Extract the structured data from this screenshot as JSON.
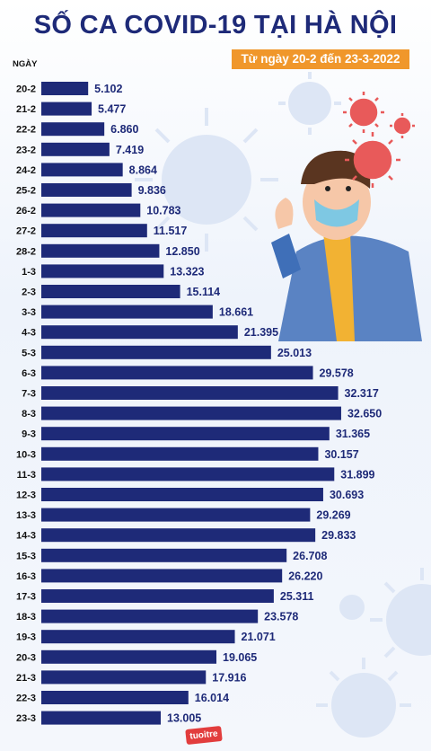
{
  "header": {
    "title": "SỐ CA COVID-19 TẠI HÀ NỘI",
    "subtitle": "Từ ngày 20-2 đến 23-3-2022"
  },
  "logo_text": "tuoitre",
  "colors": {
    "bar": "#1e2a78",
    "title": "#1e2a78",
    "subtitle_bg": "#f0972b",
    "virus": "#e85a5a"
  },
  "illustration": {
    "subject": "man-with-face-mask-sneezing",
    "icons": [
      "virus-icon",
      "virus-icon",
      "virus-icon"
    ]
  },
  "chart_data": {
    "type": "bar",
    "orientation": "horizontal",
    "title": "SỐ CA COVID-19 TẠI HÀ NỘI",
    "subtitle": "Từ ngày 20-2 đến 23-3-2022",
    "ylabel": "NGÀY",
    "xlabel": "",
    "xlim": [
      0,
      35000
    ],
    "grid": false,
    "legend": "none",
    "categories": [
      "20-2",
      "21-2",
      "22-2",
      "23-2",
      "24-2",
      "25-2",
      "26-2",
      "27-2",
      "28-2",
      "1-3",
      "2-3",
      "3-3",
      "4-3",
      "5-3",
      "6-3",
      "7-3",
      "8-3",
      "9-3",
      "10-3",
      "11-3",
      "12-3",
      "13-3",
      "14-3",
      "15-3",
      "16-3",
      "17-3",
      "18-3",
      "19-3",
      "20-3",
      "21-3",
      "22-3",
      "23-3"
    ],
    "values": [
      5102,
      5477,
      6860,
      7419,
      8864,
      9836,
      10783,
      11517,
      12850,
      13323,
      15114,
      18661,
      21395,
      25013,
      29578,
      32317,
      32650,
      31365,
      30157,
      31899,
      30693,
      29269,
      29833,
      26708,
      26220,
      25311,
      23578,
      21071,
      19065,
      17916,
      16014,
      13005
    ],
    "value_labels": [
      "5.102",
      "5.477",
      "6.860",
      "7.419",
      "8.864",
      "9.836",
      "10.783",
      "11.517",
      "12.850",
      "13.323",
      "15.114",
      "18.661",
      "21.395",
      "25.013",
      "29.578",
      "32.317",
      "32.650",
      "31.365",
      "30.157",
      "31.899",
      "30.693",
      "29.269",
      "29.833",
      "26.708",
      "26.220",
      "25.311",
      "23.578",
      "21.071",
      "19.065",
      "17.916",
      "16.014",
      "13.005"
    ]
  }
}
